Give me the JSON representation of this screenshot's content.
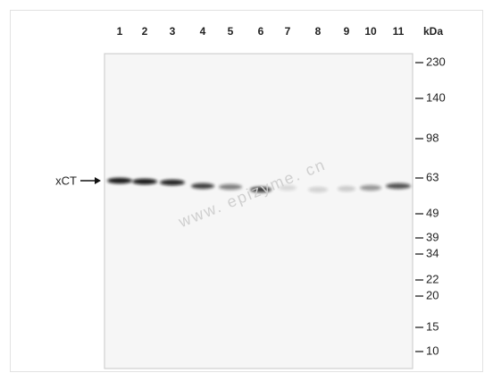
{
  "lanes": [
    "1",
    "2",
    "3",
    "4",
    "5",
    "6",
    "7",
    "8",
    "9",
    "10",
    "11"
  ],
  "unit": "kDa",
  "markers": [
    "230",
    "140",
    "98",
    "63",
    "49",
    "39",
    "34",
    "22",
    "20",
    "15",
    "10"
  ],
  "band_label": "xCT",
  "watermark": "www. epizyme. cn"
}
